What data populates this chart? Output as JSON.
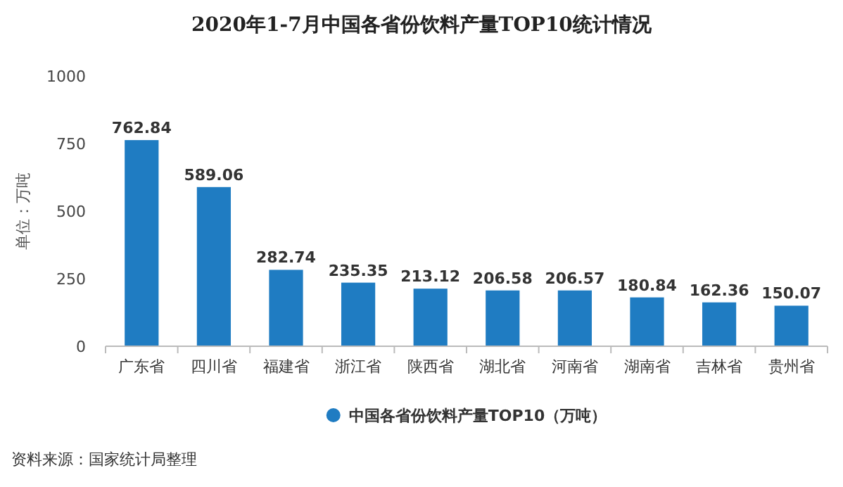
{
  "chart_data": {
    "type": "bar",
    "title": "2020年1-7月中国各省份饮料产量TOP10统计情况",
    "ylabel": "单位：万吨",
    "categories": [
      "广东省",
      "四川省",
      "福建省",
      "浙江省",
      "陕西省",
      "湖北省",
      "河南省",
      "湖南省",
      "吉林省",
      "贵州省"
    ],
    "series": [
      {
        "name": "中国各省份饮料产量TOP10（万吨）",
        "color": "#1f7cc2",
        "values": [
          762.84,
          589.06,
          282.74,
          235.35,
          213.12,
          206.58,
          206.57,
          180.84,
          162.36,
          150.07
        ]
      }
    ],
    "ylim": [
      0,
      1000
    ],
    "yticks": [
      0,
      250,
      500,
      750,
      1000
    ],
    "data_labels": true,
    "legend": "bottom",
    "annotations": [
      "资料来源：国家统计局整理"
    ]
  }
}
